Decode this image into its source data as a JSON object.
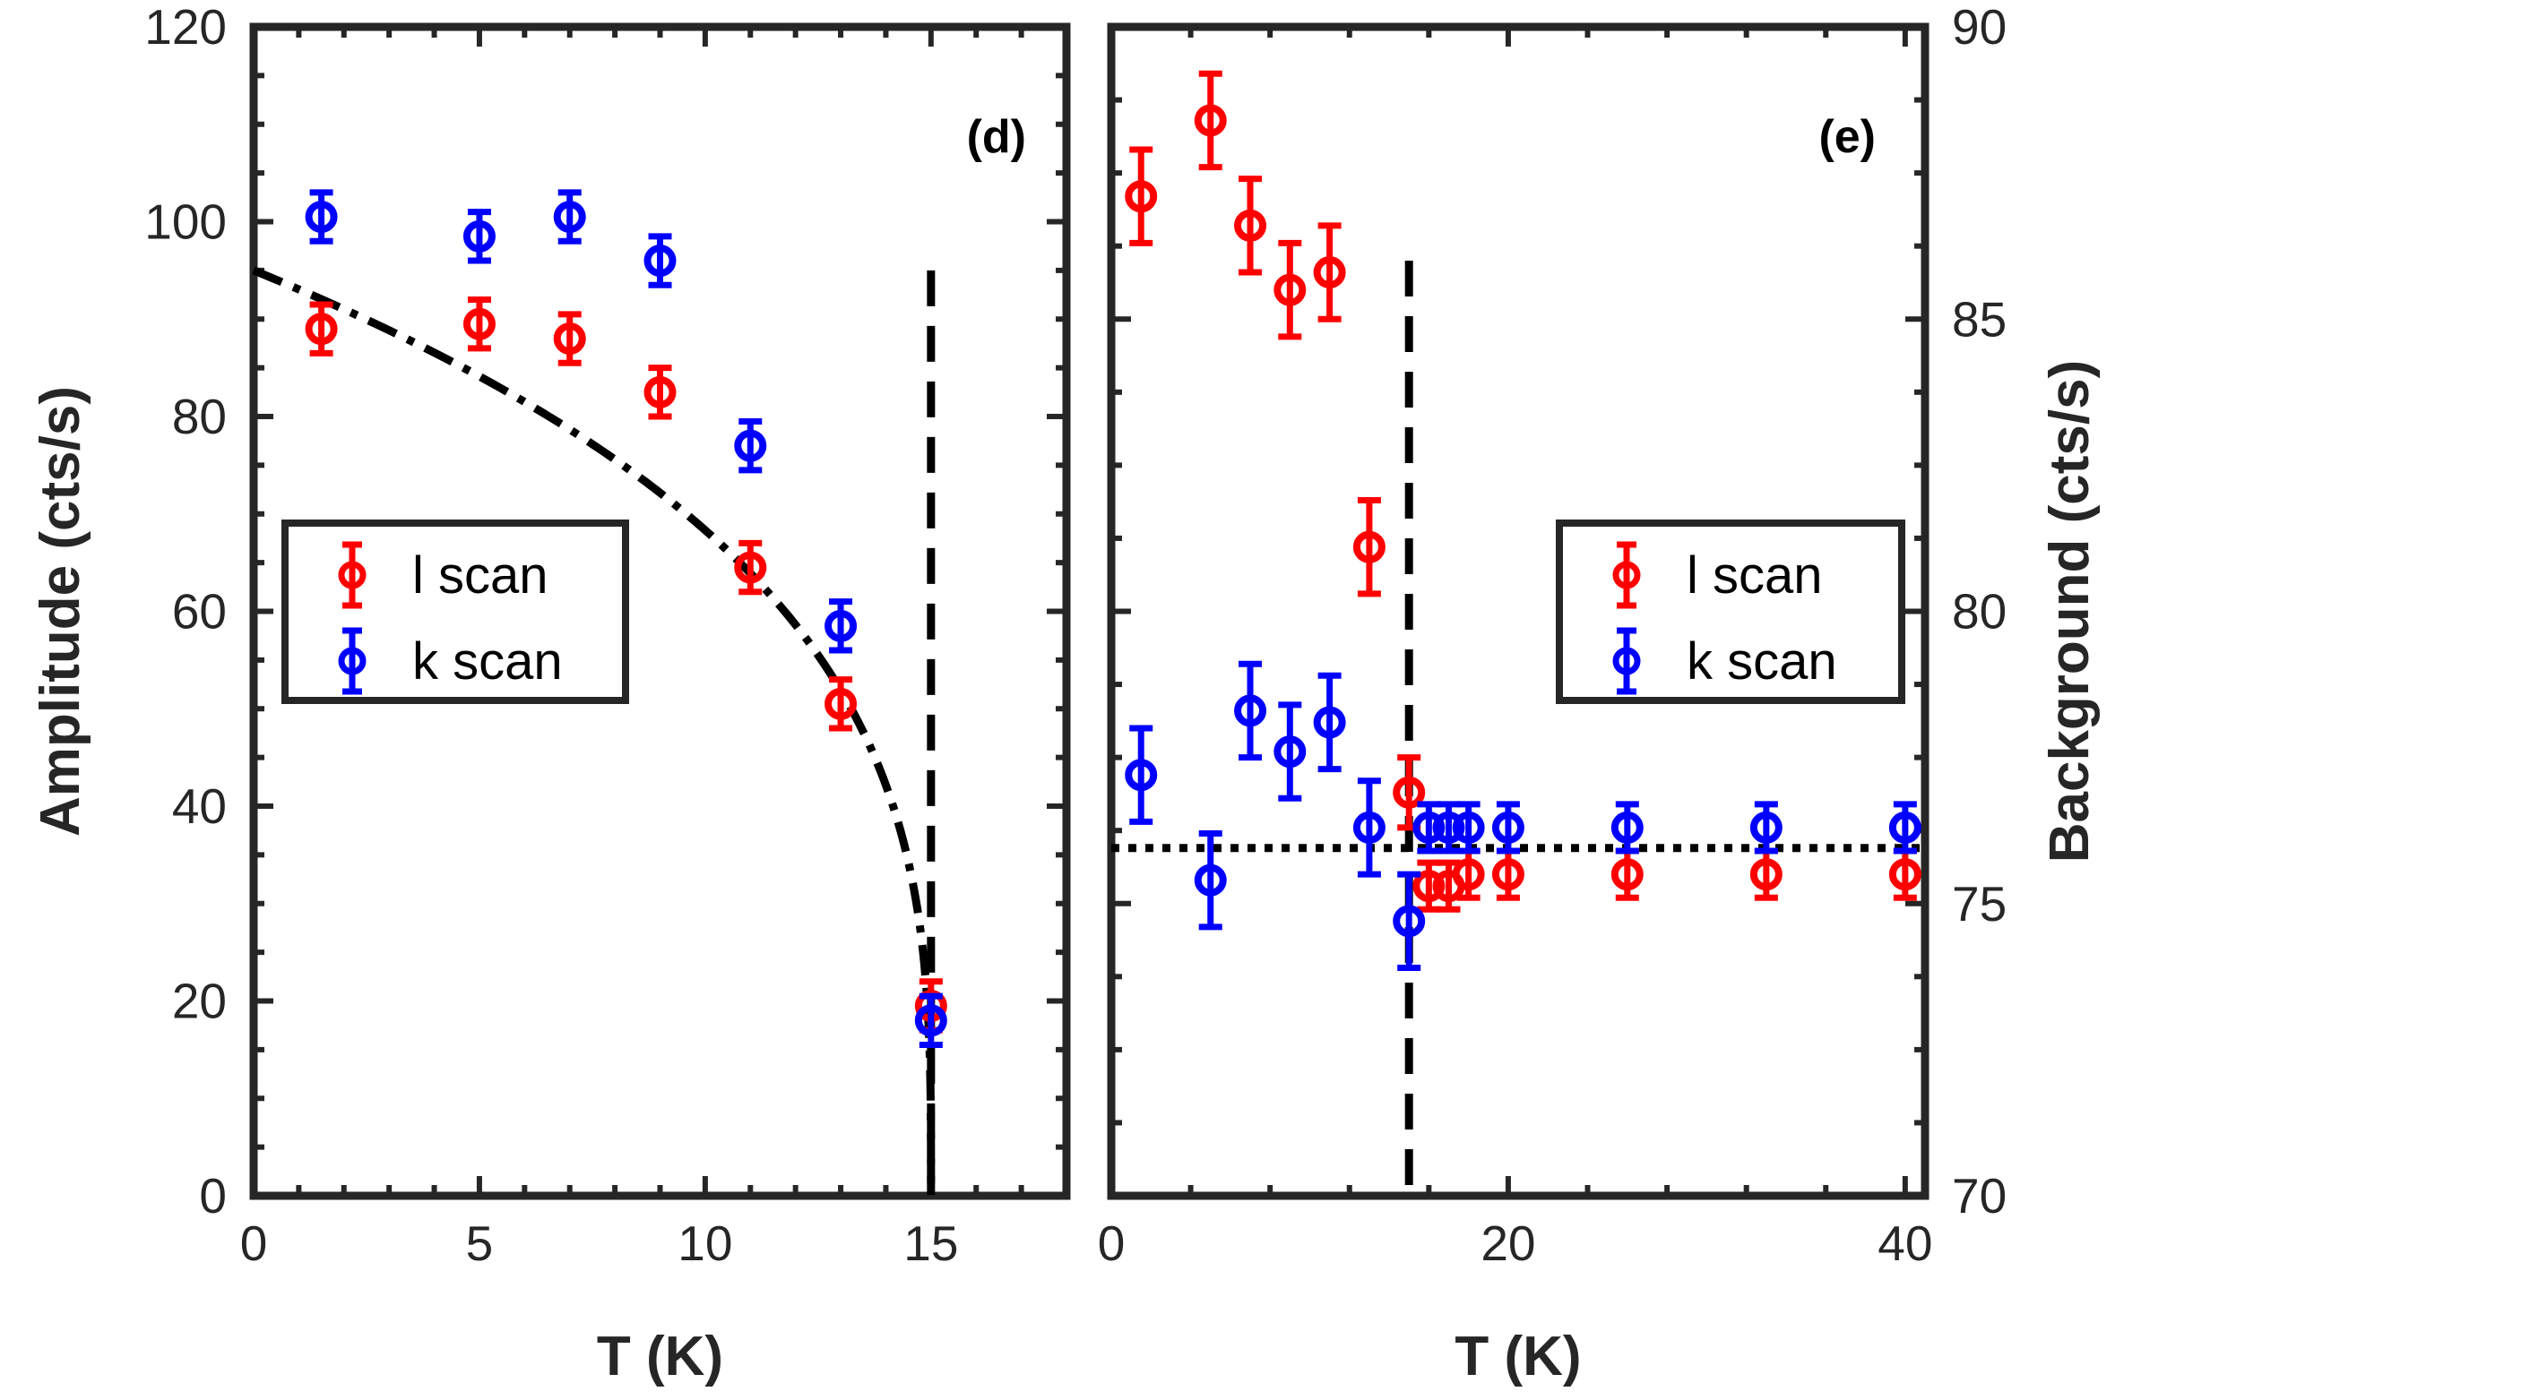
{
  "colors": {
    "l_scan": "#ff0000",
    "k_scan": "#0000ff",
    "axes": "#262626",
    "guide": "#000000"
  },
  "chart_data": [
    {
      "panel": "(d)",
      "type": "scatter",
      "xlabel": "T (K)",
      "ylabel": "Amplitude (cts/s)",
      "xlim": [
        0,
        18
      ],
      "ylim": [
        0,
        120
      ],
      "xticks": [
        0,
        5,
        10,
        15
      ],
      "yticks": [
        0,
        20,
        40,
        60,
        80,
        100,
        120
      ],
      "grid": false,
      "legend_position": "middle-left",
      "series": [
        {
          "name": "l scan",
          "color": "#ff0000",
          "x": [
            1.5,
            5,
            7,
            9,
            11,
            13,
            15
          ],
          "y": [
            89,
            89.5,
            88,
            82.5,
            64.5,
            50.5,
            19.5
          ],
          "err": [
            2.5,
            2.5,
            2.5,
            2.5,
            2.5,
            2.5,
            2.5
          ]
        },
        {
          "name": "k scan",
          "color": "#0000ff",
          "x": [
            1.5,
            5,
            7,
            9,
            11,
            13,
            15
          ],
          "y": [
            100.5,
            98.5,
            100.5,
            96,
            77,
            58.5,
            18
          ],
          "err": [
            2.5,
            2.5,
            2.5,
            2.5,
            2.5,
            2.5,
            2.5
          ]
        }
      ],
      "fit_curve": {
        "style": "dash-dot",
        "amplitude": 95,
        "tc": 15,
        "exponent": 0.3
      },
      "vertical_line": {
        "x": 15,
        "ylim": [
          0,
          95
        ],
        "style": "dashed"
      }
    },
    {
      "panel": "(e)",
      "type": "scatter",
      "xlabel": "T (K)",
      "ylabel": "Background (cts/s)",
      "xlim": [
        0,
        41
      ],
      "ylim": [
        70,
        90
      ],
      "xticks": [
        0,
        20,
        40
      ],
      "yticks": [
        70,
        75,
        80,
        85,
        90
      ],
      "y_axis_side": "right",
      "grid": false,
      "legend_position": "middle-right",
      "series": [
        {
          "name": "l scan",
          "color": "#ff0000",
          "x": [
            1.5,
            5,
            7,
            9,
            11,
            13,
            15,
            16,
            17,
            18,
            20,
            26,
            33,
            40
          ],
          "y": [
            87.1,
            88.4,
            86.6,
            85.5,
            85.8,
            81.1,
            76.9,
            75.3,
            75.3,
            75.5,
            75.5,
            75.5,
            75.5,
            75.5
          ],
          "err": [
            0.8,
            0.8,
            0.8,
            0.8,
            0.8,
            0.8,
            0.6,
            0.4,
            0.4,
            0.4,
            0.4,
            0.4,
            0.4,
            0.4
          ]
        },
        {
          "name": "k scan",
          "color": "#0000ff",
          "x": [
            1.5,
            5,
            7,
            9,
            11,
            13,
            15,
            16,
            17,
            18,
            20,
            26,
            33,
            40
          ],
          "y": [
            77.2,
            75.4,
            78.3,
            77.6,
            78.1,
            76.3,
            74.7,
            76.3,
            76.3,
            76.3,
            76.3,
            76.3,
            76.3,
            76.3
          ],
          "err": [
            0.8,
            0.8,
            0.8,
            0.8,
            0.8,
            0.8,
            0.8,
            0.4,
            0.4,
            0.4,
            0.4,
            0.4,
            0.4,
            0.4
          ]
        }
      ],
      "vertical_line": {
        "x": 15,
        "ylim": [
          70,
          86
        ],
        "style": "dashed"
      },
      "horizontal_line": {
        "y": 75.95,
        "style": "dotted"
      }
    }
  ]
}
